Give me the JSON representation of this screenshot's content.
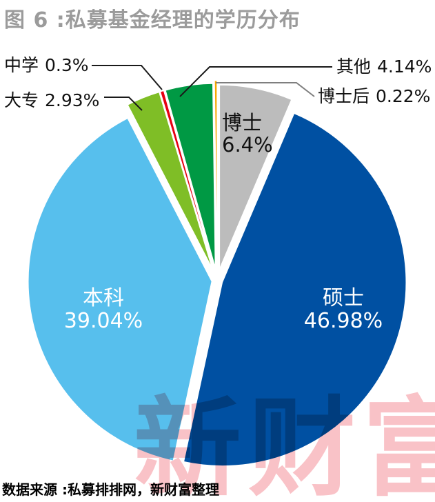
{
  "title": "图 6 :私募基金经理的学历分布",
  "source": "数据来源 :私募排排网，新财富整理",
  "watermark": "新财富",
  "colors": {
    "title_gray": "#9B9B9B",
    "watermark_pink": "#E60012",
    "leader_black": "#1a1a1a",
    "leader_gray": "#7f7f7f"
  },
  "chart_data": {
    "type": "pie",
    "title": "私募基金经理的学历分布",
    "unit": "%",
    "start_angle_deg": 0,
    "direction": "clockwise",
    "legend_position": "none",
    "slices": [
      {
        "label": "博士",
        "value": 6.4,
        "display": "6.4%",
        "color": "#BCBCBC",
        "label_placement": "inside"
      },
      {
        "label": "硕士",
        "value": 46.98,
        "display": "46.98%",
        "color": "#0050A2",
        "label_placement": "inside"
      },
      {
        "label": "本科",
        "value": 39.04,
        "display": "39.04%",
        "color": "#57BFED",
        "label_placement": "inside"
      },
      {
        "label": "大专",
        "value": 2.93,
        "display": "2.93%",
        "color": "#7FBE26",
        "label_placement": "callout"
      },
      {
        "label": "中学",
        "value": 0.3,
        "display": "0.3%",
        "color": "#E60012",
        "label_placement": "callout"
      },
      {
        "label": "其他",
        "value": 4.14,
        "display": "4.14%",
        "color": "#009944",
        "label_placement": "callout"
      },
      {
        "label": "博士后",
        "value": 0.22,
        "display": "0.22%",
        "color": "#F7A800",
        "label_placement": "callout"
      }
    ]
  }
}
